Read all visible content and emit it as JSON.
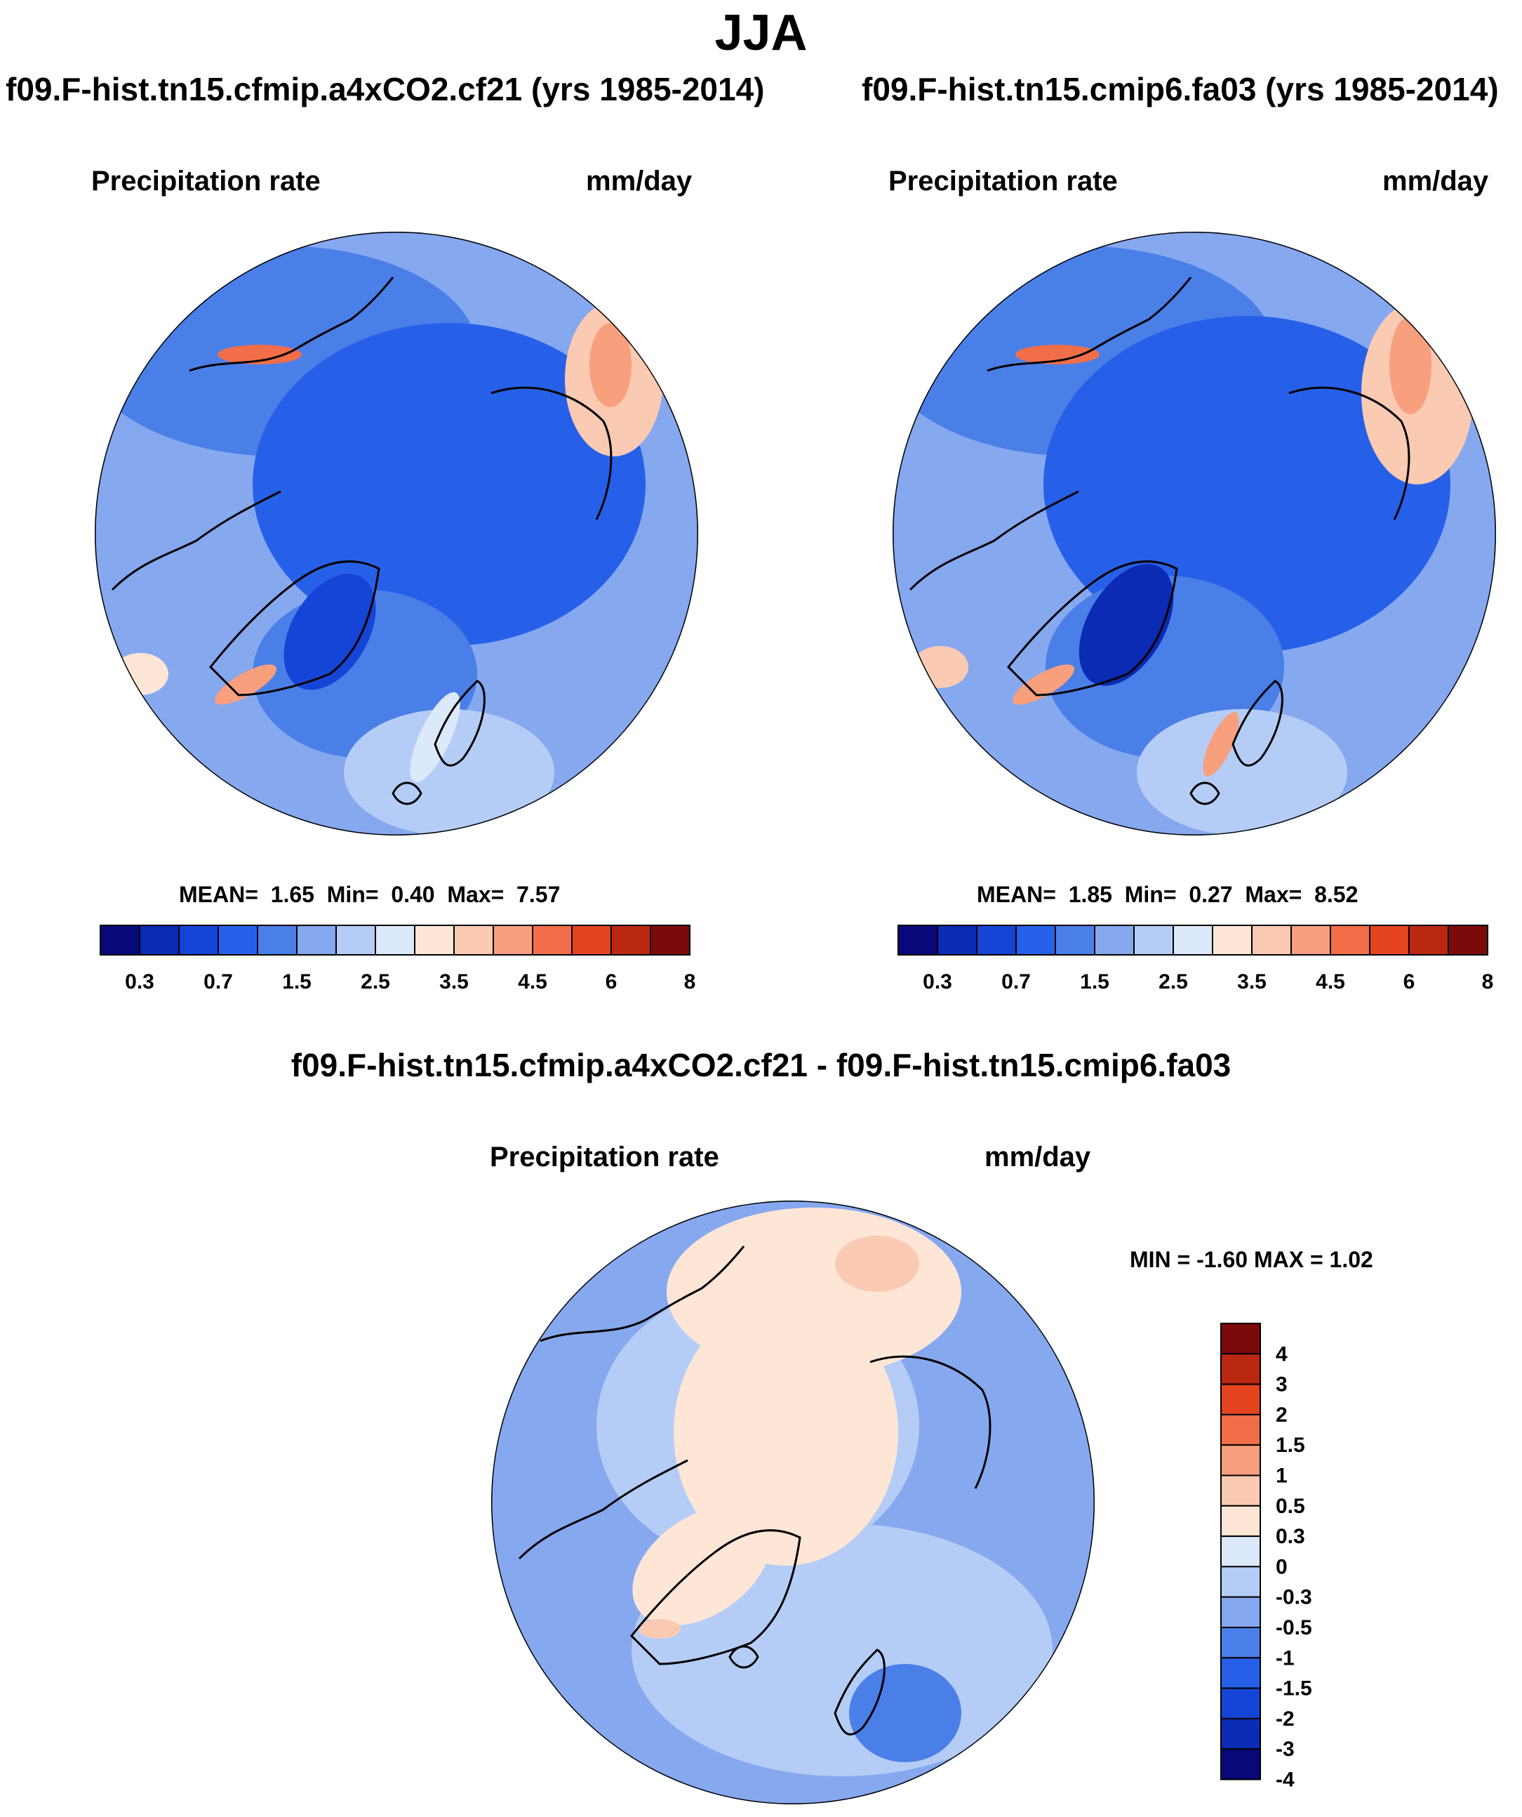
{
  "season": "JJA",
  "panels": [
    {
      "case": "f09.F-hist.tn15.cfmip.a4xCO2.cf21 (yrs 1985-2014)",
      "variable": "Precipitation rate",
      "units": "mm/day",
      "stats": {
        "mean_label": "MEAN=",
        "mean": "1.65",
        "min_label": "Min=",
        "min": "0.40",
        "max_label": "Max=",
        "max": "7.57"
      }
    },
    {
      "case": "f09.F-hist.tn15.cmip6.fa03 (yrs 1985-2014)",
      "variable": "Precipitation rate",
      "units": "mm/day",
      "stats": {
        "mean_label": "MEAN=",
        "mean": "1.85",
        "min_label": "Min=",
        "min": "0.27",
        "max_label": "Max=",
        "max": "8.52"
      }
    }
  ],
  "diff_panel": {
    "case": "f09.F-hist.tn15.cfmip.a4xCO2.cf21 - f09.F-hist.tn15.cmip6.fa03",
    "variable": "Precipitation rate",
    "units": "mm/day",
    "stats_text": "MIN =  -1.60 MAX =   1.02"
  },
  "colorbar": {
    "colors": [
      "#08087a",
      "#0b2bb4",
      "#1545d6",
      "#2760e8",
      "#4a7fe8",
      "#86a8ef",
      "#b5cdf6",
      "#dce9fb",
      "#fde6d6",
      "#fbcab3",
      "#f89f7e",
      "#f26e48",
      "#e4431f",
      "#bb2812",
      "#7d0a0a"
    ],
    "labels": [
      "0.3",
      "0.7",
      "1.5",
      "2.5",
      "3.5",
      "4.5",
      "6",
      "8"
    ]
  },
  "diff_colorbar": {
    "colors_top_to_bottom": [
      "#7d0a0a",
      "#bb2812",
      "#e4431f",
      "#f26e48",
      "#f89f7e",
      "#fbcab3",
      "#fde6d6",
      "#dce9fb",
      "#b5cdf6",
      "#86a8ef",
      "#4a7fe8",
      "#2760e8",
      "#1545d6",
      "#0b2bb4",
      "#08087a"
    ],
    "labels_top_to_bottom": [
      "4",
      "3",
      "2",
      "1.5",
      "1",
      "0.5",
      "0.3",
      "0",
      "-0.3",
      "-0.5",
      "-1",
      "-1.5",
      "-2",
      "-3",
      "-4"
    ]
  },
  "chart_data": [
    {
      "type": "map",
      "title": "f09.F-hist.tn15.cfmip.a4xCO2.cf21 (yrs 1985-2014)",
      "variable": "Precipitation rate",
      "units": "mm/day",
      "projection": "north polar stereographic",
      "mean": 1.65,
      "min": 0.4,
      "max": 7.57,
      "contour_levels": [
        0.2,
        0.3,
        0.5,
        0.7,
        1,
        1.5,
        2,
        2.5,
        3,
        3.5,
        4,
        4.5,
        5,
        6,
        7,
        8
      ]
    },
    {
      "type": "map",
      "title": "f09.F-hist.tn15.cmip6.fa03 (yrs 1985-2014)",
      "variable": "Precipitation rate",
      "units": "mm/day",
      "projection": "north polar stereographic",
      "mean": 1.85,
      "min": 0.27,
      "max": 8.52,
      "contour_levels": [
        0.2,
        0.3,
        0.5,
        0.7,
        1,
        1.5,
        2,
        2.5,
        3,
        3.5,
        4,
        4.5,
        5,
        6,
        7,
        8
      ]
    },
    {
      "type": "map",
      "title": "f09.F-hist.tn15.cfmip.a4xCO2.cf21 - f09.F-hist.tn15.cmip6.fa03",
      "variable": "Precipitation rate",
      "units": "mm/day",
      "projection": "north polar stereographic",
      "min": -1.6,
      "max": 1.02,
      "contour_levels": [
        -4,
        -3,
        -2,
        -1.5,
        -1,
        -0.5,
        -0.3,
        0,
        0.3,
        0.5,
        1,
        1.5,
        2,
        3,
        4
      ]
    }
  ]
}
